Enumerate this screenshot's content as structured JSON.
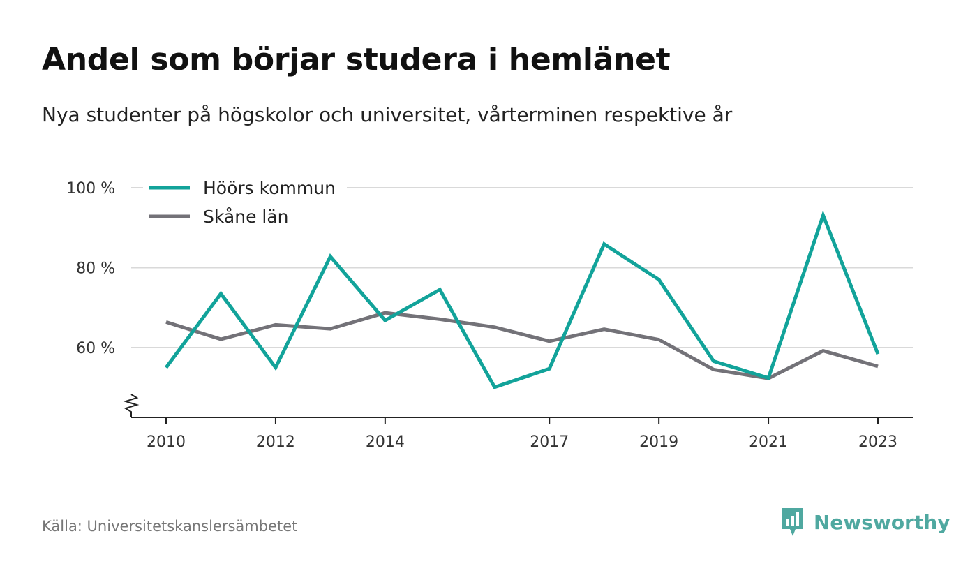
{
  "chart_data": {
    "type": "line",
    "title": "Andel som börjar studera i hemlänet",
    "subtitle": "Nya studenter på högskolor och universitet, vårterminen respektive år",
    "x": [
      2010,
      2011,
      2012,
      2013,
      2014,
      2015,
      2016,
      2017,
      2018,
      2019,
      2020,
      2021,
      2022,
      2023
    ],
    "x_ticks": [
      2010,
      2012,
      2014,
      2017,
      2019,
      2021,
      2023
    ],
    "y_ticks": [
      {
        "value": 60,
        "label": "60 %"
      },
      {
        "value": 80,
        "label": "80 %"
      },
      {
        "value": 100,
        "label": "100 %"
      }
    ],
    "ylim": [
      42.5,
      100
    ],
    "axis_break": true,
    "grid": true,
    "legend_position": "top-left",
    "series": [
      {
        "name": "Höörs kommun",
        "color": "#12a39a",
        "values": [
          55.0,
          73.5,
          55.0,
          82.8,
          66.8,
          74.5,
          50.1,
          54.7,
          85.9,
          77.0,
          56.6,
          52.4,
          93.1,
          58.4
        ]
      },
      {
        "name": "Skåne län",
        "color": "#737278",
        "values": [
          66.4,
          62.1,
          65.7,
          64.7,
          68.7,
          67.1,
          65.1,
          61.6,
          64.6,
          62.0,
          54.5,
          52.3,
          59.2,
          55.3
        ]
      }
    ]
  },
  "source": "Källa: Universitetskanslersämbetet",
  "brand": {
    "name": "Newsworthy",
    "icon": "newsworthy-logo-icon",
    "color": "#4fa8a0"
  }
}
